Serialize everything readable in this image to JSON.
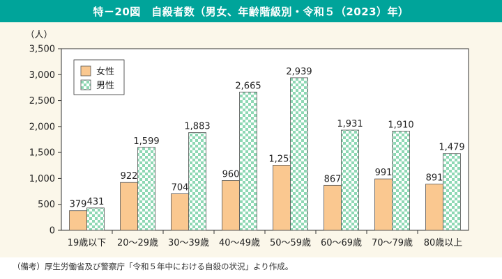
{
  "title": "特－20図　自殺者数（男女、年齢階級別・令和５（2023）年）",
  "footnote": "（備考）厚生労働省及び警察庁「令和５年中における自殺の状況」より作成。",
  "colors": {
    "title_bg": "#00a49a",
    "panel_bg": "#fbf7ea",
    "female": "#fac890",
    "male_check_a": "#8ed8b4",
    "male_check_b": "#ffffff"
  },
  "chart_data": {
    "type": "bar",
    "unit_label": "（人）",
    "categories": [
      "19歳以下",
      "20～29歳",
      "30～39歳",
      "40～49歳",
      "50～59歳",
      "60～69歳",
      "70～79歳",
      "80歳以上"
    ],
    "series": [
      {
        "name": "女性",
        "values": [
          379,
          922,
          704,
          960,
          1255,
          867,
          991,
          891
        ],
        "labels": [
          "379",
          "922",
          "704",
          "960",
          "1,255",
          "867",
          "991",
          "891"
        ]
      },
      {
        "name": "男性",
        "values": [
          431,
          1599,
          1883,
          2665,
          2939,
          1931,
          1910,
          1479
        ],
        "labels": [
          "431",
          "1,599",
          "1,883",
          "2,665",
          "2,939",
          "1,931",
          "1,910",
          "1,479"
        ]
      }
    ],
    "ylim": [
      0,
      3500
    ],
    "yticks": [
      "0",
      "500",
      "1,000",
      "1,500",
      "2,000",
      "2,500",
      "3,000",
      "3,500"
    ],
    "ytick_values": [
      0,
      500,
      1000,
      1500,
      2000,
      2500,
      3000,
      3500
    ],
    "legend_position": "top-left",
    "grid": false
  }
}
